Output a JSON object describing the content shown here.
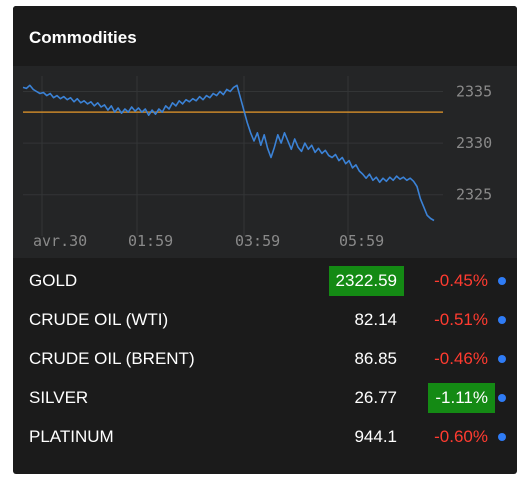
{
  "widget": {
    "title": "Commodities"
  },
  "chart_data": {
    "type": "line",
    "x_tick_labels": [
      "avr.30",
      "01:59",
      "03:59",
      "05:59"
    ],
    "y_tick_labels": [
      "2335",
      "2330",
      "2325"
    ],
    "ylim": [
      2321,
      2336.5
    ],
    "reference_line": {
      "value": 2333,
      "color": "#c8872a"
    },
    "grid": true,
    "series": [
      {
        "color": "#3b82d6",
        "values": [
          2335.4,
          2335.3,
          2335.6,
          2335.2,
          2335.0,
          2334.8,
          2334.9,
          2334.6,
          2334.8,
          2334.4,
          2334.6,
          2334.3,
          2334.5,
          2334.2,
          2334.4,
          2334.0,
          2334.3,
          2333.9,
          2334.1,
          2333.8,
          2334.0,
          2333.6,
          2333.9,
          2333.5,
          2333.7,
          2333.2,
          2333.6,
          2333.0,
          2333.4,
          2332.9,
          2333.3,
          2333.0,
          2333.5,
          2333.1,
          2333.4,
          2333.0,
          2333.3,
          2332.7,
          2333.2,
          2332.8,
          2333.3,
          2333.0,
          2333.6,
          2333.3,
          2333.9,
          2333.6,
          2334.1,
          2333.8,
          2334.2,
          2334.0,
          2334.3,
          2334.1,
          2334.5,
          2334.2,
          2334.6,
          2334.4,
          2334.8,
          2334.6,
          2335.0,
          2334.7,
          2335.2,
          2335.0,
          2335.4,
          2335.6,
          2334.4,
          2333.2,
          2332.0,
          2331.0,
          2330.2,
          2331.0,
          2329.8,
          2330.8,
          2329.5,
          2328.6,
          2329.6,
          2330.8,
          2330.0,
          2331.0,
          2330.2,
          2329.4,
          2330.4,
          2329.6,
          2329.2,
          2330.0,
          2329.4,
          2329.8,
          2329.1,
          2329.5,
          2329.0,
          2329.3,
          2328.8,
          2328.6,
          2328.9,
          2328.3,
          2328.6,
          2328.0,
          2328.3,
          2327.6,
          2327.9,
          2327.3,
          2327.0,
          2326.6,
          2327.0,
          2326.4,
          2326.7,
          2326.2,
          2326.6,
          2326.3,
          2326.7,
          2326.4,
          2326.8,
          2326.5,
          2326.7,
          2326.4,
          2326.6,
          2326.3,
          2325.8,
          2324.6,
          2323.8,
          2323.0,
          2322.7,
          2322.5
        ]
      }
    ]
  },
  "quotes": [
    {
      "name": "GOLD",
      "price": "2322.59",
      "change": "-0.45%",
      "price_highlight": true,
      "change_highlight": false,
      "change_negative": true
    },
    {
      "name": "CRUDE OIL (WTI)",
      "price": "82.14",
      "change": "-0.51%",
      "price_highlight": false,
      "change_highlight": false,
      "change_negative": true
    },
    {
      "name": "CRUDE OIL (BRENT)",
      "price": "86.85",
      "change": "-0.46%",
      "price_highlight": false,
      "change_highlight": false,
      "change_negative": true
    },
    {
      "name": "SILVER",
      "price": "26.77",
      "change": "-1.11%",
      "price_highlight": false,
      "change_highlight": true,
      "change_negative": false
    },
    {
      "name": "PLATINUM",
      "price": "944.1",
      "change": "-0.60%",
      "price_highlight": false,
      "change_highlight": false,
      "change_negative": true
    }
  ],
  "colors": {
    "highlight_green": "#148a14",
    "negative_red": "#ff3b30",
    "status_dot_blue": "#2f7cf6"
  }
}
